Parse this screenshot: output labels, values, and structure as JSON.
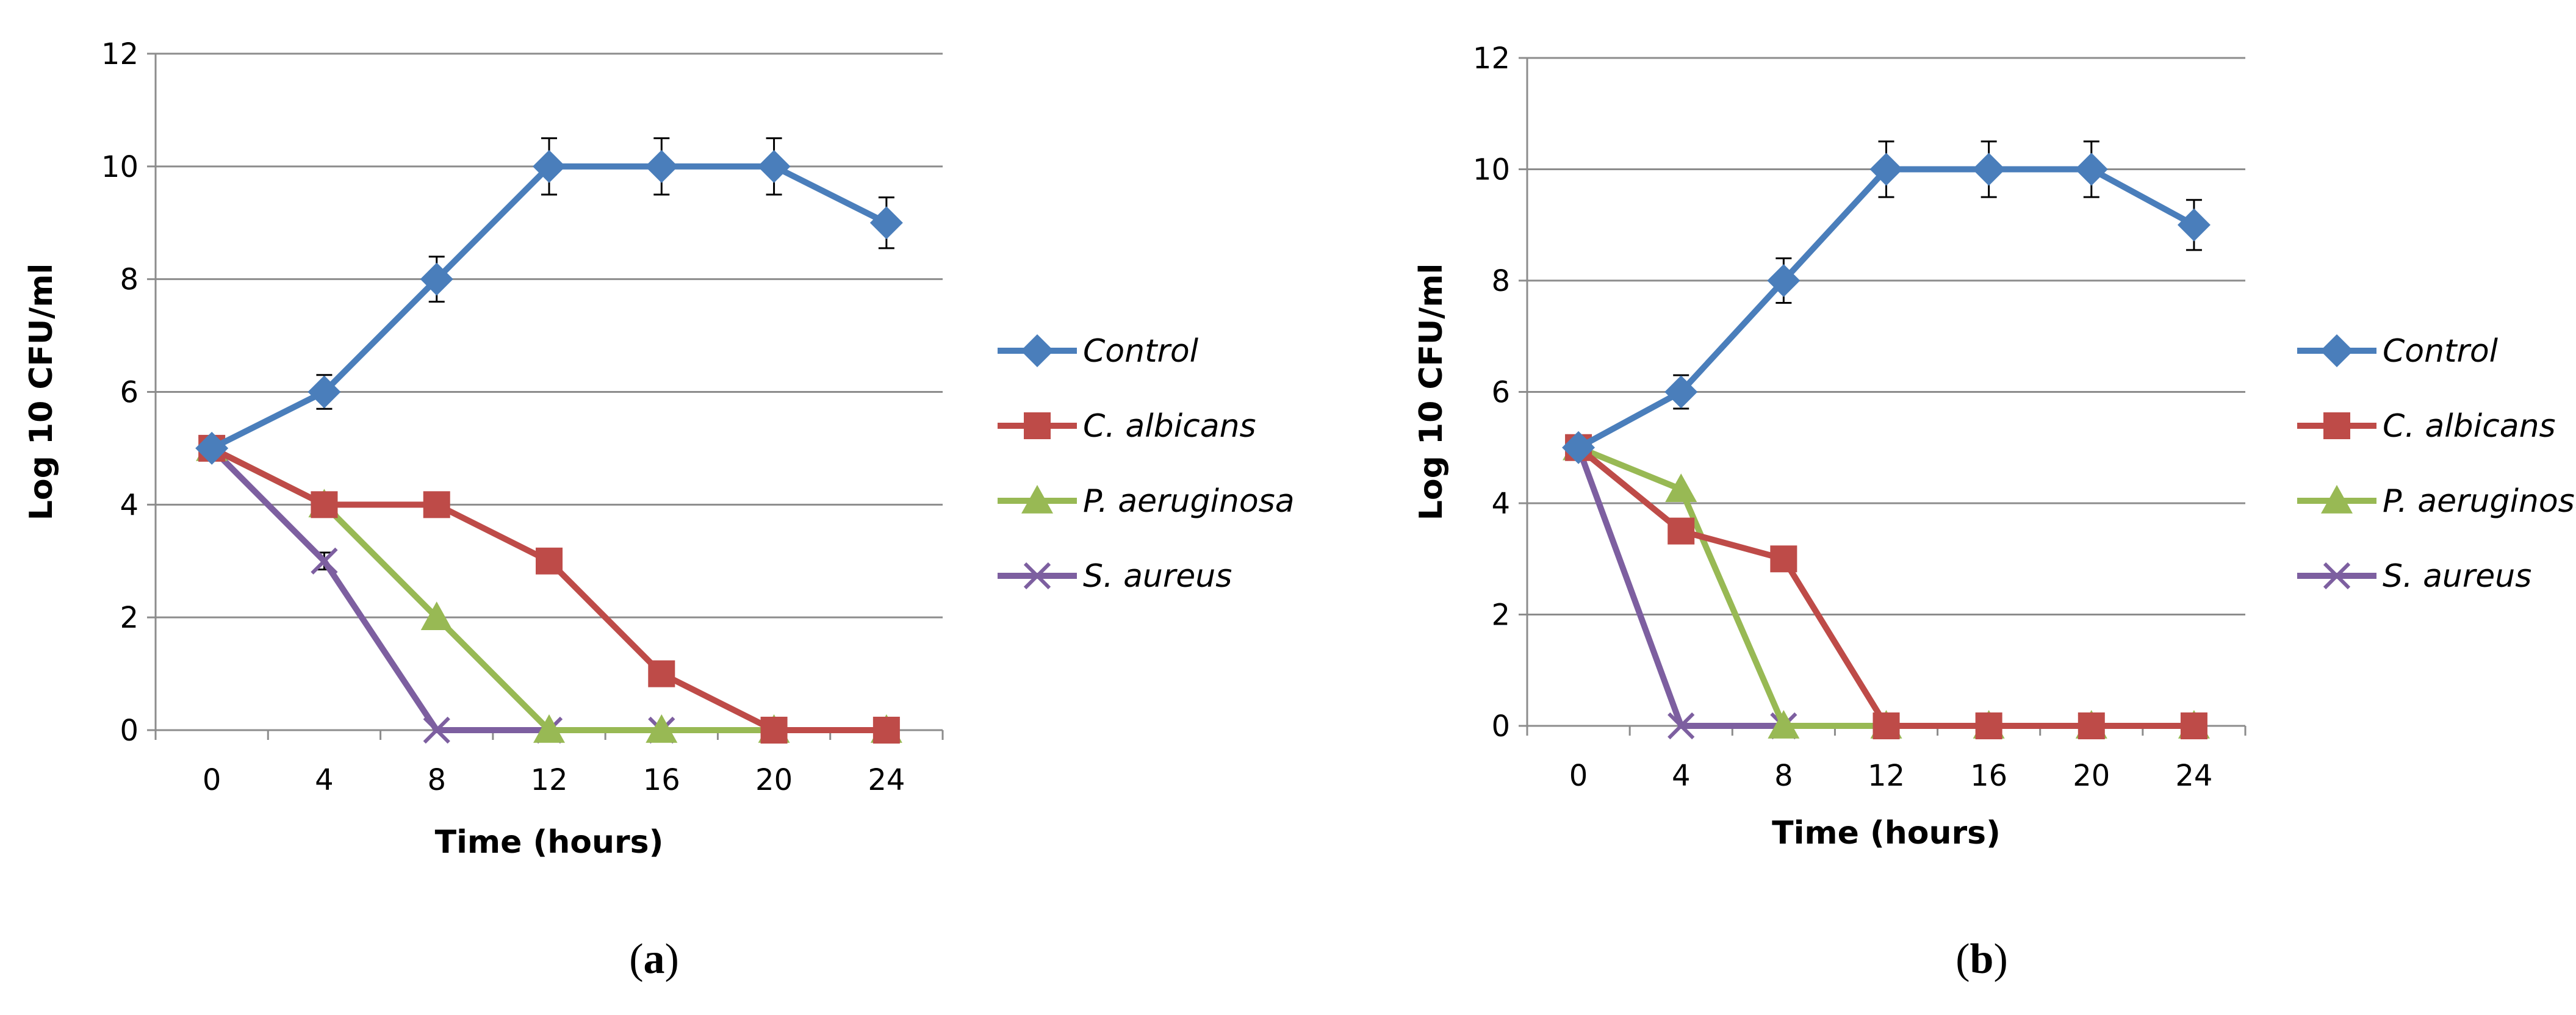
{
  "chart_data": [
    {
      "type": "line",
      "panel_label": "a",
      "panel_label_bold": "a",
      "xlabel": "Time (hours)",
      "ylabel": "Log 10 CFU/ml",
      "x": [
        0,
        4,
        8,
        12,
        16,
        20,
        24
      ],
      "ylim": [
        0,
        12
      ],
      "yticks": [
        0,
        2,
        4,
        6,
        8,
        10,
        12
      ],
      "grid": "horizontal",
      "legend_position": "right",
      "series": [
        {
          "name": "Control",
          "color": "#4a7ebb",
          "marker": "diamond",
          "values": [
            5,
            6,
            8,
            10,
            10,
            10,
            9
          ],
          "errors": [
            0,
            0.3,
            0.4,
            0.5,
            0.5,
            0.5,
            0.45
          ]
        },
        {
          "name": "C. albicans",
          "color": "#be4b48",
          "marker": "square",
          "values": [
            5,
            4,
            4,
            3,
            1,
            0,
            0
          ],
          "errors": [
            0,
            0,
            0,
            0,
            0,
            0,
            0
          ]
        },
        {
          "name": "P. aeruginosa",
          "color": "#98b954",
          "marker": "triangle",
          "values": [
            5,
            4,
            2,
            0,
            0,
            0,
            0
          ],
          "errors": [
            0,
            0,
            0,
            0,
            0,
            0,
            0
          ]
        },
        {
          "name": "S. aureus",
          "color": "#7d5fa0",
          "marker": "x",
          "values": [
            5,
            3,
            0,
            0,
            0,
            0,
            0
          ],
          "errors": [
            0,
            0.15,
            0,
            0,
            0,
            0,
            0
          ]
        }
      ]
    },
    {
      "type": "line",
      "panel_label": "b",
      "panel_label_bold": "b",
      "xlabel": "Time (hours)",
      "ylabel": "Log 10 CFU/ml",
      "x": [
        0,
        4,
        8,
        12,
        16,
        20,
        24
      ],
      "ylim": [
        0,
        12
      ],
      "yticks": [
        0,
        2,
        4,
        6,
        8,
        10,
        12
      ],
      "grid": "horizontal",
      "legend_position": "right",
      "series": [
        {
          "name": "Control",
          "color": "#4a7ebb",
          "marker": "diamond",
          "values": [
            5,
            6,
            8,
            10,
            10,
            10,
            9
          ],
          "errors": [
            0,
            0.3,
            0.4,
            0.5,
            0.5,
            0.5,
            0.45
          ]
        },
        {
          "name": "C. albicans",
          "color": "#be4b48",
          "marker": "square",
          "values": [
            5,
            3.5,
            3,
            0,
            0,
            0,
            0
          ],
          "errors": [
            0,
            0,
            0,
            0,
            0,
            0,
            0
          ]
        },
        {
          "name": "P. aeruginosa",
          "color": "#98b954",
          "marker": "triangle",
          "values": [
            5,
            4.25,
            0,
            0,
            0,
            0,
            0
          ],
          "errors": [
            0,
            0,
            0,
            0,
            0,
            0,
            0
          ]
        },
        {
          "name": "S. aureus",
          "color": "#7d5fa0",
          "marker": "x",
          "values": [
            5,
            0,
            0,
            0,
            0,
            0,
            0
          ],
          "errors": [
            0,
            0,
            0,
            0,
            0,
            0,
            0
          ]
        }
      ]
    }
  ]
}
